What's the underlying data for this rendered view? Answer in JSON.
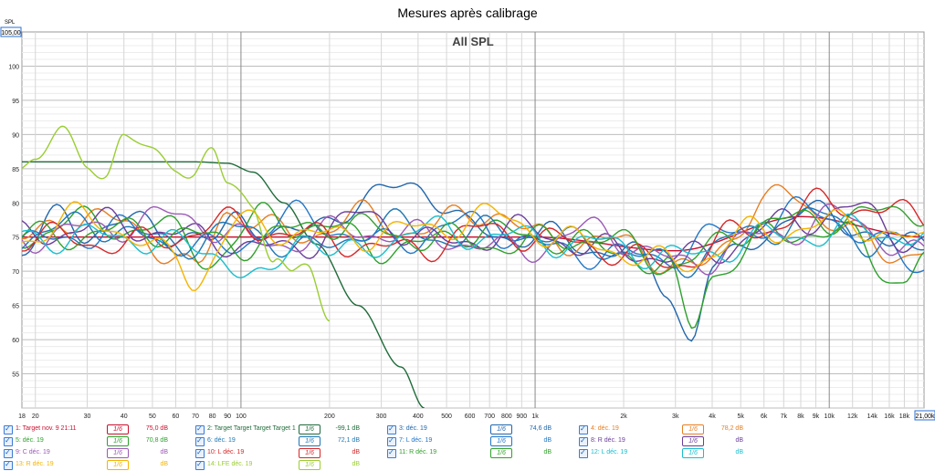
{
  "title": "Mesures après calibrage",
  "chart_data": {
    "type": "line",
    "title": "All SPL",
    "ylabel": "SPL",
    "ylim": [
      50,
      105
    ],
    "xlim": [
      18,
      21000
    ],
    "xscale": "log",
    "y_ticks": [
      55,
      60,
      65,
      70,
      75,
      80,
      85,
      90,
      95,
      100
    ],
    "y_top_label": "105,00",
    "x_ticks": [
      {
        "v": 18,
        "label": "18"
      },
      {
        "v": 20,
        "label": "20"
      },
      {
        "v": 30,
        "label": "30"
      },
      {
        "v": 40,
        "label": "40"
      },
      {
        "v": 50,
        "label": "50"
      },
      {
        "v": 60,
        "label": "60"
      },
      {
        "v": 70,
        "label": "70"
      },
      {
        "v": 80,
        "label": "80"
      },
      {
        "v": 90,
        "label": "90"
      },
      {
        "v": 100,
        "label": "100"
      },
      {
        "v": 200,
        "label": "200"
      },
      {
        "v": 300,
        "label": "300"
      },
      {
        "v": 400,
        "label": "400"
      },
      {
        "v": 500,
        "label": "500"
      },
      {
        "v": 600,
        "label": "600"
      },
      {
        "v": 700,
        "label": "700"
      },
      {
        "v": 800,
        "label": "800"
      },
      {
        "v": 900,
        "label": "900"
      },
      {
        "v": 1000,
        "label": "1k"
      },
      {
        "v": 2000,
        "label": "2k"
      },
      {
        "v": 3000,
        "label": "3k"
      },
      {
        "v": 4000,
        "label": "4k"
      },
      {
        "v": 5000,
        "label": "5k"
      },
      {
        "v": 6000,
        "label": "6k"
      },
      {
        "v": 7000,
        "label": "7k"
      },
      {
        "v": 8000,
        "label": "8k"
      },
      {
        "v": 9000,
        "label": "9k"
      },
      {
        "v": 10000,
        "label": "10k"
      },
      {
        "v": 12000,
        "label": "12k"
      },
      {
        "v": 14000,
        "label": "14k"
      },
      {
        "v": 16000,
        "label": "16k"
      },
      {
        "v": 18000,
        "label": "18k"
      }
    ],
    "x_right_label": "21,00k",
    "series": [
      {
        "name": "1: Target nov. 9 21:11",
        "color": "#c8102e",
        "smoothing": "1/6",
        "value": "75,0 dB",
        "x": [
          18,
          100,
          1000,
          3000,
          8000,
          21000
        ],
        "y": [
          75,
          75,
          75,
          73,
          78,
          75
        ]
      },
      {
        "name": "2: Target Target Target Target 1",
        "color": "#1f6b3a",
        "smoothing": "1/6",
        "value": "-99,1 dB",
        "x": [
          18,
          30,
          50,
          70,
          90,
          110,
          140,
          180,
          250,
          350,
          420
        ],
        "y": [
          86,
          86,
          86,
          86,
          85.8,
          84.5,
          80,
          74,
          65,
          56,
          50
        ]
      },
      {
        "name": "3: déc. 19",
        "color": "#2166ac",
        "smoothing": "1/6",
        "value": "74,6 dB",
        "x": [
          18,
          25,
          30,
          40,
          60,
          80,
          100,
          150,
          250,
          400,
          600,
          1000,
          2000,
          2800,
          3400,
          4000,
          6000,
          10000,
          16000,
          21000
        ],
        "y": [
          73,
          78,
          76,
          77,
          76,
          74,
          78,
          75,
          80,
          83,
          76,
          75,
          73,
          68,
          60,
          70,
          76,
          79,
          73,
          76
        ]
      },
      {
        "name": "4: déc. 19",
        "color": "#e67e22",
        "smoothing": "1/6",
        "value": "78,2 dB",
        "x": [
          18,
          25,
          40,
          70,
          90,
          150,
          250,
          400,
          700,
          1000,
          2000,
          3500,
          6000,
          7000,
          10000,
          16000,
          21000
        ],
        "y": [
          74,
          78,
          77,
          70,
          79,
          75,
          78,
          76,
          79,
          75,
          74,
          70,
          80,
          81,
          78,
          72,
          74
        ]
      },
      {
        "name": "5: déc. 19",
        "color": "#2ca02c",
        "smoothing": "1/6",
        "value": "70,8 dB",
        "x": [
          18,
          25,
          35,
          50,
          80,
          120,
          200,
          350,
          600,
          1000,
          2000,
          2800,
          3400,
          4000,
          7000,
          12000,
          18000,
          21000
        ],
        "y": [
          74,
          78,
          76,
          77,
          72,
          78,
          76,
          73,
          76,
          75,
          73,
          70,
          62,
          70,
          76,
          75,
          68,
          72
        ]
      },
      {
        "name": "6: déc. 19",
        "color": "#1f77b4",
        "smoothing": "1/6",
        "value": "72,1 dB",
        "x": [
          18,
          30,
          60,
          100,
          180,
          300,
          500,
          800,
          1500,
          3000,
          5000,
          9000,
          15000,
          21000
        ],
        "y": [
          75,
          77,
          74,
          76,
          73,
          77,
          75,
          76,
          74,
          71,
          75,
          78,
          74,
          73
        ]
      },
      {
        "name": "7: L déc. 19",
        "color": "#2176c8",
        "smoothing": "1/6",
        "value": "",
        "x": [
          18,
          40,
          80,
          160,
          300,
          600,
          1200,
          2500,
          5000,
          9000,
          16000,
          21000
        ],
        "y": [
          74,
          76,
          73,
          78,
          74,
          77,
          73,
          72,
          76,
          79,
          73,
          71
        ]
      },
      {
        "name": "8: R déc. 19",
        "color": "#6a3d9a",
        "smoothing": "1/6",
        "value": "",
        "x": [
          18,
          35,
          70,
          140,
          260,
          500,
          900,
          1800,
          3500,
          7000,
          12000,
          21000
        ],
        "y": [
          75,
          77,
          75,
          73,
          78,
          74,
          76,
          73,
          72,
          77,
          79,
          74
        ]
      },
      {
        "name": "9: C déc. 19",
        "color": "#9b59b6",
        "smoothing": "1/6",
        "value": "",
        "x": [
          18,
          30,
          60,
          120,
          240,
          450,
          850,
          1600,
          3200,
          6000,
          11000,
          21000
        ],
        "y": [
          75,
          76,
          78,
          74,
          76,
          75,
          73,
          76,
          71,
          75,
          78,
          72
        ]
      },
      {
        "name": "10: L déc. 19",
        "color": "#d62728",
        "smoothing": "1/6",
        "value": "",
        "x": [
          18,
          45,
          90,
          180,
          350,
          700,
          1400,
          2800,
          5500,
          10000,
          21000
        ],
        "y": [
          75,
          74,
          77,
          75,
          73,
          76,
          74,
          71,
          76,
          80,
          78
        ]
      },
      {
        "name": "11: R déc. 19",
        "color": "#33a02c",
        "smoothing": "1/6",
        "value": "",
        "x": [
          18,
          50,
          100,
          200,
          400,
          800,
          1600,
          3000,
          6000,
          12000,
          21000
        ],
        "y": [
          75,
          76,
          74,
          77,
          75,
          74,
          75,
          71,
          77,
          78,
          79
        ]
      },
      {
        "name": "12: L déc. 19",
        "color": "#17becf",
        "smoothing": "1/6",
        "value": "",
        "x": [
          18,
          40,
          80,
          120,
          160,
          220,
          400,
          800,
          1600,
          3200,
          6400,
          13000,
          21000
        ],
        "y": [
          75,
          75,
          73,
          68,
          76,
          72,
          76,
          75,
          74,
          72,
          75,
          76,
          75
        ]
      },
      {
        "name": "13: R déc. 19",
        "color": "#f4b400",
        "smoothing": "1/6",
        "value": "",
        "x": [
          18,
          30,
          60,
          70,
          100,
          200,
          400,
          700,
          1500,
          3000,
          6000,
          12000,
          21000
        ],
        "y": [
          75,
          78,
          72,
          69,
          77,
          75,
          76,
          78,
          74,
          71,
          76,
          77,
          74
        ]
      },
      {
        "name": "14: LFE déc. 19",
        "color": "#9acd32",
        "smoothing": "1/6",
        "value": "",
        "x": [
          18,
          20,
          25,
          30,
          35,
          40,
          50,
          60,
          70,
          80,
          90,
          110,
          130,
          150,
          170,
          200
        ],
        "y": [
          85,
          86,
          89.5,
          87.5,
          84,
          89,
          87,
          87,
          84,
          86.5,
          82.5,
          80,
          73,
          68,
          70,
          63
        ]
      }
    ]
  }
}
